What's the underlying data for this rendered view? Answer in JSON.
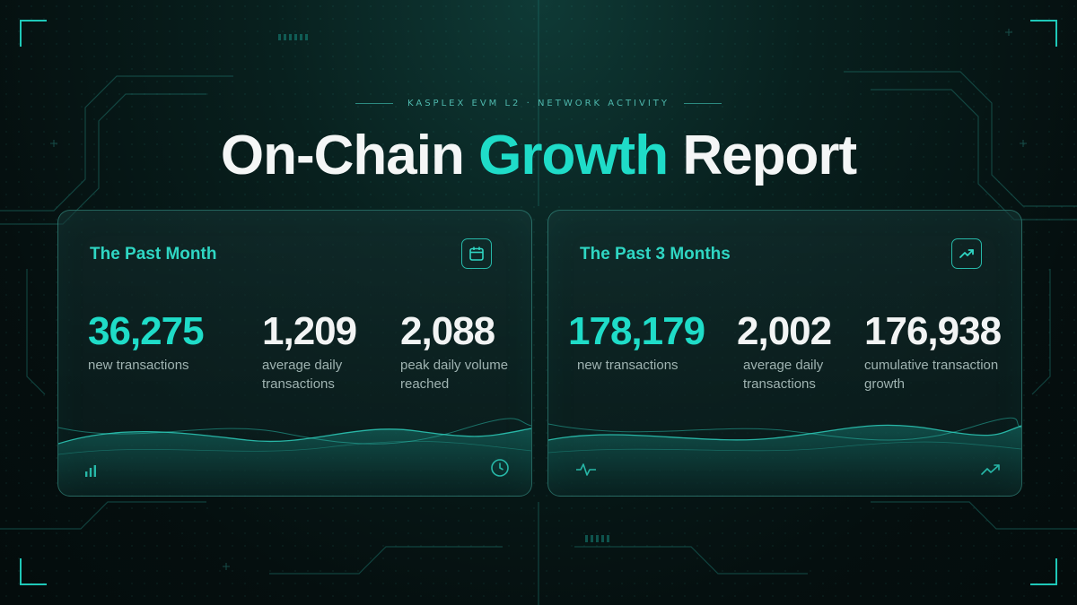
{
  "header": {
    "subtitle": "KASPLEX EVM L2 · NETWORK ACTIVITY",
    "title_part1": "On-Chain ",
    "title_accent": "Growth",
    "title_part2": " Report"
  },
  "colors": {
    "accent": "#1fdcc8",
    "background": "#061414",
    "card_border": "#2c8a80",
    "label_gray": "#9fb3b1"
  },
  "cards": [
    {
      "title": "The Past Month",
      "icon": "calendar-icon",
      "stats": [
        {
          "value": "36,275",
          "label_line1": "new transactions",
          "label_line2": ""
        },
        {
          "value": "1,209",
          "label_line1": "average daily",
          "label_line2": "transactions"
        },
        {
          "value": "2,088",
          "label_line1": "peak daily volume",
          "label_line2": "reached"
        }
      ],
      "footer_icons": [
        "bar-chart-icon",
        "clock-icon"
      ]
    },
    {
      "title": "The Past 3 Months",
      "icon": "trending-up-icon",
      "stats": [
        {
          "value": "178,179",
          "label_line1": "new transactions",
          "label_line2": ""
        },
        {
          "value": "2,002",
          "label_line1": "average daily",
          "label_line2": "transactions"
        },
        {
          "value": "176,938",
          "label_line1": "cumulative transaction",
          "label_line2": "growth"
        }
      ],
      "footer_icons": [
        "pulse-icon",
        "trending-up-icon"
      ]
    }
  ]
}
